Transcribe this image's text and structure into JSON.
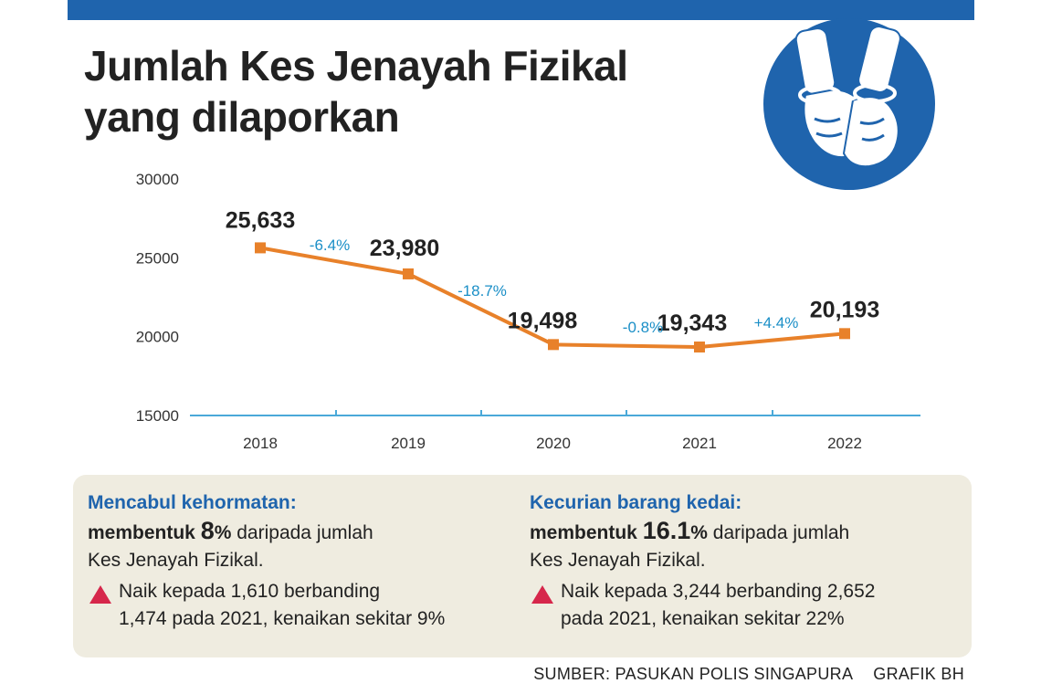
{
  "header": {
    "title_line1": "Jumlah Kes Jenayah Fizikal",
    "title_line2": "yang dilaporkan"
  },
  "emblem": {
    "icon": "handcuffed-hands-icon",
    "color": "#1f64ad"
  },
  "chart_data": {
    "type": "line",
    "title": "Jumlah Kes Jenayah Fizikal yang dilaporkan",
    "categories": [
      "2018",
      "2019",
      "2020",
      "2021",
      "2022"
    ],
    "series": [
      {
        "name": "Kes Jenayah Fizikal",
        "values": [
          25633,
          23980,
          19498,
          19343,
          20193
        ],
        "color": "#e8812a"
      }
    ],
    "data_labels": [
      "25,633",
      "23,980",
      "19,498",
      "19,343",
      "20,193"
    ],
    "changes": [
      "-6.4%",
      "-18.7%",
      "-0.8%",
      "+4.4%"
    ],
    "change_color": "#1b8fc7",
    "y_ticks": [
      "30000",
      "25000",
      "20000",
      "15000"
    ],
    "ylim": [
      15000,
      30000
    ],
    "xlabel": "",
    "ylabel": "",
    "grid": false,
    "axis_color": "#4aa9d9"
  },
  "info": {
    "left": {
      "heading": "Mencabul kehormatan:",
      "lead": "membentuk ",
      "percent": "8",
      "pct_sign": "%",
      "rest": " daripada jumlah",
      "line2": "Kes Jenayah Fizikal.",
      "note_line1": "Naik kepada 1,610 berbanding",
      "note_line2": "1,474 pada 2021, kenaikan sekitar 9%"
    },
    "right": {
      "heading": "Kecurian barang kedai:",
      "lead": "membentuk ",
      "percent": "16.1",
      "pct_sign": "%",
      "rest": " daripada jumlah",
      "line2": "Kes Jenayah Fizikal.",
      "note_line1": "Naik kepada 3,244 berbanding 2,652",
      "note_line2": "pada 2021, kenaikan sekitar 22%"
    },
    "increase_icon_color": "#d6274b"
  },
  "footer": {
    "source": "SUMBER: PASUKAN POLIS SINGAPURA",
    "credit": "GRAFIK BH"
  }
}
